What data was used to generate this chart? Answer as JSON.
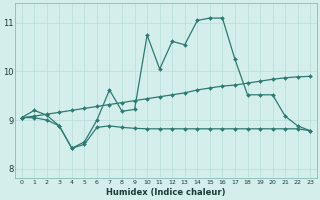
{
  "xlabel": "Humidex (Indice chaleur)",
  "bg_color": "#d4eeec",
  "line_color": "#2d7a72",
  "grid_color": "#b8ddd8",
  "xlim": [
    -0.5,
    23.5
  ],
  "ylim": [
    7.8,
    11.4
  ],
  "yticks": [
    8,
    9,
    10,
    11
  ],
  "xticks": [
    0,
    1,
    2,
    3,
    4,
    5,
    6,
    7,
    8,
    9,
    10,
    11,
    12,
    13,
    14,
    15,
    16,
    17,
    18,
    19,
    20,
    21,
    22,
    23
  ],
  "series1_x": [
    0,
    1,
    2,
    3,
    4,
    5,
    6,
    7,
    8,
    9,
    10,
    11,
    12,
    13,
    14,
    15,
    16,
    17,
    18,
    19,
    20,
    21,
    22,
    23
  ],
  "series1_y": [
    9.05,
    9.2,
    9.1,
    8.88,
    8.42,
    8.55,
    9.0,
    9.62,
    9.18,
    9.22,
    10.75,
    10.05,
    10.62,
    10.55,
    11.05,
    11.1,
    11.1,
    10.25,
    9.52,
    9.52,
    9.52,
    9.08,
    8.88,
    8.78
  ],
  "series2_x": [
    0,
    1,
    2,
    3,
    4,
    5,
    6,
    7,
    8,
    9,
    10,
    11,
    12,
    13,
    14,
    15,
    16,
    17,
    18,
    19,
    20,
    21,
    22,
    23
  ],
  "series2_y": [
    9.05,
    9.08,
    9.12,
    9.16,
    9.2,
    9.24,
    9.28,
    9.32,
    9.36,
    9.4,
    9.44,
    9.48,
    9.52,
    9.56,
    9.62,
    9.66,
    9.7,
    9.72,
    9.76,
    9.8,
    9.84,
    9.87,
    9.89,
    9.9
  ],
  "series3_x": [
    0,
    1,
    2,
    3,
    4,
    5,
    6,
    7,
    8,
    9,
    10,
    11,
    12,
    13,
    14,
    15,
    16,
    17,
    18,
    19,
    20,
    21,
    22,
    23
  ],
  "series3_y": [
    9.05,
    9.05,
    9.0,
    8.88,
    8.42,
    8.5,
    8.85,
    8.88,
    8.85,
    8.83,
    8.82,
    8.82,
    8.82,
    8.82,
    8.82,
    8.82,
    8.82,
    8.82,
    8.82,
    8.82,
    8.82,
    8.82,
    8.82,
    8.78
  ]
}
